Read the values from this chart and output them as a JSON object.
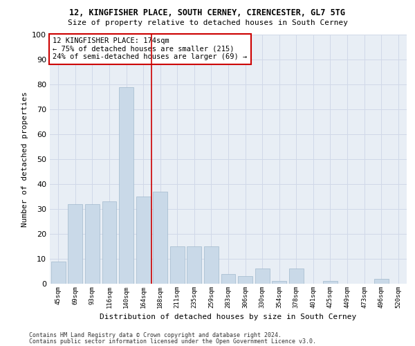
{
  "title1": "12, KINGFISHER PLACE, SOUTH CERNEY, CIRENCESTER, GL7 5TG",
  "title2": "Size of property relative to detached houses in South Cerney",
  "xlabel": "Distribution of detached houses by size in South Cerney",
  "ylabel": "Number of detached properties",
  "categories": [
    "45sqm",
    "69sqm",
    "93sqm",
    "116sqm",
    "140sqm",
    "164sqm",
    "188sqm",
    "211sqm",
    "235sqm",
    "259sqm",
    "283sqm",
    "306sqm",
    "330sqm",
    "354sqm",
    "378sqm",
    "401sqm",
    "425sqm",
    "449sqm",
    "473sqm",
    "496sqm",
    "520sqm"
  ],
  "values": [
    9,
    32,
    32,
    33,
    79,
    35,
    37,
    15,
    15,
    15,
    4,
    3,
    6,
    1,
    6,
    0,
    1,
    0,
    0,
    2,
    0
  ],
  "bar_color": "#c9d9e8",
  "bar_edge_color": "#a0b8cc",
  "vline_x": 5.5,
  "vline_color": "#cc0000",
  "annotation_text": "12 KINGFISHER PLACE: 174sqm\n← 75% of detached houses are smaller (215)\n24% of semi-detached houses are larger (69) →",
  "annotation_box_color": "#ffffff",
  "annotation_edge_color": "#cc0000",
  "ylim": [
    0,
    100
  ],
  "yticks": [
    0,
    10,
    20,
    30,
    40,
    50,
    60,
    70,
    80,
    90,
    100
  ],
  "grid_color": "#d0d8e8",
  "bg_color": "#e8eef5",
  "footer1": "Contains HM Land Registry data © Crown copyright and database right 2024.",
  "footer2": "Contains public sector information licensed under the Open Government Licence v3.0."
}
